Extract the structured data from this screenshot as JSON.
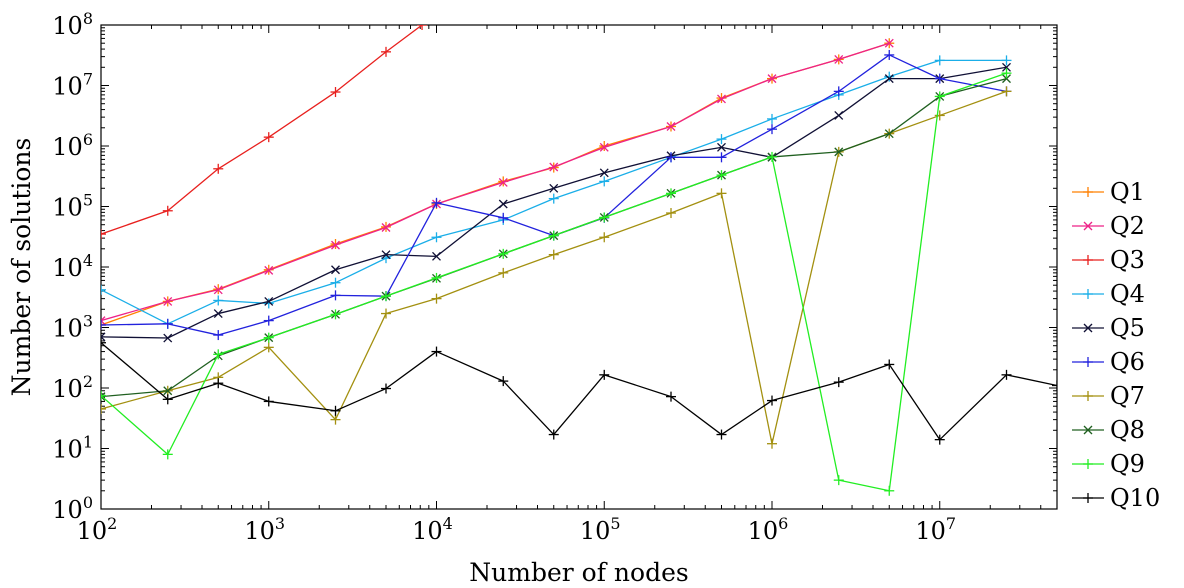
{
  "chart_data": {
    "type": "line",
    "xlabel": "Number of nodes",
    "ylabel": "Number of solutions",
    "xscale": "log",
    "yscale": "log",
    "xlim": [
      100,
      50000000
    ],
    "ylim": [
      1,
      100000000
    ],
    "x_ticks": [
      {
        "base": "10",
        "exp": "2",
        "value": 100
      },
      {
        "base": "10",
        "exp": "3",
        "value": 1000
      },
      {
        "base": "10",
        "exp": "4",
        "value": 10000
      },
      {
        "base": "10",
        "exp": "5",
        "value": 100000
      },
      {
        "base": "10",
        "exp": "6",
        "value": 1000000
      },
      {
        "base": "10",
        "exp": "7",
        "value": 10000000
      }
    ],
    "y_ticks": [
      {
        "base": "10",
        "exp": "0",
        "value": 1
      },
      {
        "base": "10",
        "exp": "1",
        "value": 10
      },
      {
        "base": "10",
        "exp": "2",
        "value": 100
      },
      {
        "base": "10",
        "exp": "3",
        "value": 1000
      },
      {
        "base": "10",
        "exp": "4",
        "value": 10000
      },
      {
        "base": "10",
        "exp": "5",
        "value": 100000
      },
      {
        "base": "10",
        "exp": "6",
        "value": 1000000
      },
      {
        "base": "10",
        "exp": "7",
        "value": 10000000
      },
      {
        "base": "10",
        "exp": "8",
        "value": 100000000
      }
    ],
    "grid": false,
    "legend_position": "outside-right",
    "x": [
      100,
      250,
      500,
      1000,
      2500,
      5000,
      10000,
      25000,
      50000,
      100000,
      250000,
      500000,
      1000000,
      2500000,
      5000000,
      10000000,
      25000000
    ],
    "series": [
      {
        "name": "Q1",
        "color": "#ff8000",
        "marker": "plus",
        "x": [
          100,
          250,
          500,
          1000,
          2500,
          5000,
          10000,
          25000,
          50000,
          100000,
          250000,
          500000,
          1000000,
          2500000,
          5000000
        ],
        "y": [
          1100,
          2700,
          4300,
          9000,
          24000,
          46000,
          110000,
          260000,
          440000,
          1000000,
          2100000,
          6200000,
          13000000,
          27000000,
          50000000
        ]
      },
      {
        "name": "Q2",
        "color": "#ee2288",
        "marker": "x",
        "x": [
          100,
          250,
          500,
          1000,
          2500,
          5000,
          10000,
          25000,
          50000,
          100000,
          250000,
          500000,
          1000000,
          2500000,
          5000000
        ],
        "y": [
          1300,
          2700,
          4200,
          8800,
          23000,
          45000,
          110000,
          250000,
          450000,
          950000,
          2100000,
          6000000,
          13000000,
          27000000,
          50000000
        ]
      },
      {
        "name": "Q3",
        "color": "#e8201e",
        "marker": "plus",
        "x": [
          100,
          250,
          500,
          1000,
          2500,
          5000,
          8200
        ],
        "y": [
          35000,
          85000,
          420000,
          1400000,
          7800000,
          36000000,
          100000000
        ]
      },
      {
        "name": "Q4",
        "color": "#1aaee8",
        "marker": "plus",
        "x": [
          100,
          250,
          500,
          1000,
          2500,
          5000,
          10000,
          25000,
          50000,
          100000,
          250000,
          500000,
          1000000,
          2500000,
          5000000,
          10000000,
          25000000
        ],
        "y": [
          4200,
          1150,
          2800,
          2500,
          5500,
          14000,
          31000,
          60000,
          135000,
          260000,
          650000,
          1300000,
          2800000,
          7000000,
          14000000,
          26000000,
          26000000
        ]
      },
      {
        "name": "Q5",
        "color": "#101035",
        "marker": "x",
        "x": [
          100,
          250,
          500,
          1000,
          2500,
          5000,
          10000,
          25000,
          50000,
          100000,
          250000,
          500000,
          1000000,
          2500000,
          5000000,
          10000000,
          25000000
        ],
        "y": [
          700,
          670,
          1700,
          2700,
          9000,
          16000,
          15000,
          110000,
          200000,
          360000,
          690000,
          950000,
          650000,
          3200000,
          13000000,
          13000000,
          20000000
        ]
      },
      {
        "name": "Q6",
        "color": "#2222dd",
        "marker": "plus",
        "x": [
          100,
          250,
          500,
          1000,
          2500,
          5000,
          10000,
          25000,
          50000,
          100000,
          250000,
          500000,
          1000000,
          2500000,
          5000000,
          10000000,
          25000000
        ],
        "y": [
          1100,
          1150,
          750,
          1300,
          3400,
          3300,
          115000,
          65000,
          33000,
          65000,
          650000,
          650000,
          1900000,
          8000000,
          32000000,
          13000000,
          8000000
        ]
      },
      {
        "name": "Q7",
        "color": "#a39010",
        "marker": "plus",
        "x": [
          100,
          250,
          500,
          1000,
          2500,
          5000,
          10000,
          25000,
          50000,
          100000,
          250000,
          500000,
          1000000,
          2500000,
          5000000,
          10000000,
          25000000
        ],
        "y": [
          45,
          90,
          150,
          470,
          30,
          1700,
          3000,
          8000,
          16000,
          31000,
          78000,
          165000,
          12,
          800000,
          1600000,
          3200000,
          8000000
        ]
      },
      {
        "name": "Q8",
        "color": "#206020",
        "marker": "x",
        "x": [
          100,
          250,
          500,
          1000,
          2500,
          5000,
          10000,
          25000,
          50000,
          100000,
          250000,
          500000,
          1000000,
          2500000,
          5000000,
          10000000,
          25000000
        ],
        "y": [
          72,
          90,
          340,
          680,
          1650,
          3300,
          6500,
          16500,
          33000,
          66000,
          165000,
          330000,
          660000,
          800000,
          1600000,
          6600000,
          13000000
        ]
      },
      {
        "name": "Q9",
        "color": "#22ee22",
        "marker": "plus",
        "x": [
          100,
          250,
          500,
          1000,
          2500,
          5000,
          10000,
          25000,
          50000,
          100000,
          250000,
          500000,
          1000000,
          2500000,
          5000000,
          10000000,
          25000000
        ],
        "y": [
          75,
          8,
          360,
          680,
          1650,
          3300,
          6600,
          16500,
          33000,
          66000,
          165000,
          330000,
          660000,
          3,
          2,
          6600000,
          16000000
        ]
      },
      {
        "name": "Q10",
        "color": "#000000",
        "marker": "plus",
        "x": [
          100,
          250,
          500,
          1000,
          2500,
          5000,
          10000,
          25000,
          50000,
          100000,
          250000,
          500000,
          1000000,
          2500000,
          5000000,
          10000000,
          25000000,
          50000000
        ],
        "y": [
          560,
          65,
          120,
          60,
          42,
          98,
          400,
          130,
          17,
          165,
          72,
          17,
          62,
          125,
          245,
          14,
          165,
          110
        ]
      }
    ]
  }
}
